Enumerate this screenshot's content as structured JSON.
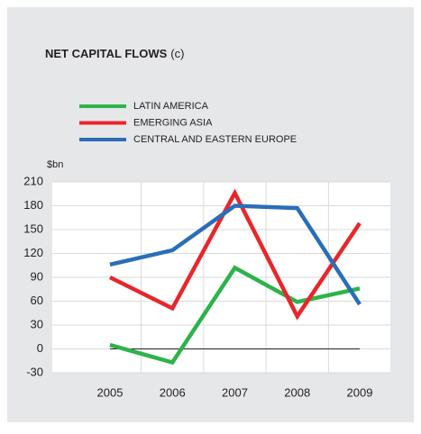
{
  "chart_data": {
    "type": "line",
    "title": "NET CAPITAL FLOWS",
    "title_note": "(c)",
    "y_unit": "$bn",
    "categories": [
      "2005",
      "2006",
      "2007",
      "2008",
      "2009"
    ],
    "series": [
      {
        "name": "LATIN AMERICA",
        "color": "#2db34a",
        "values": [
          5,
          -17,
          102,
          59,
          76
        ]
      },
      {
        "name": "EMERGING ASIA",
        "color": "#e8262b",
        "values": [
          90,
          51,
          196,
          41,
          158
        ]
      },
      {
        "name": "CENTRAL AND EASTERN EUROPE",
        "color": "#2a6eb8",
        "values": [
          106,
          124,
          180,
          177,
          56
        ]
      }
    ],
    "ylim": [
      -30,
      210
    ],
    "yticks": [
      -30,
      0,
      30,
      60,
      90,
      120,
      150,
      180,
      210
    ],
    "grid": true
  }
}
